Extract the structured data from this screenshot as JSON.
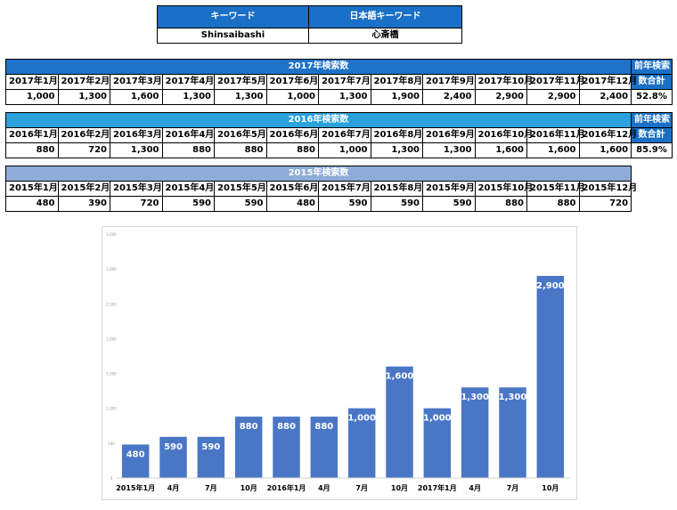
{
  "keyword_table": {
    "headers": [
      "キーワード",
      "日本語キーワード"
    ],
    "values": [
      "Shinsaibashi",
      "心斎橋"
    ]
  },
  "tables": [
    {
      "title": "2017年検索数",
      "months": [
        "2017年1月",
        "2017年2月",
        "2017年3月",
        "2017年4月",
        "2017年5月",
        "2017年6月",
        "2017年7月",
        "2017年8月",
        "2017年9月",
        "2017年10月",
        "2017年11月",
        "2017年12月"
      ],
      "values": [
        "1,000",
        "1,300",
        "1,600",
        "1,300",
        "1,300",
        "1,000",
        "1,300",
        "1,900",
        "2,400",
        "2,900",
        "2,900",
        "2,400"
      ],
      "side_header_1": "前年検索",
      "side_header_2": "数合計",
      "side_value": "52.8%"
    },
    {
      "title": "2016年検索数",
      "months": [
        "2016年1月",
        "2016年2月",
        "2016年3月",
        "2016年4月",
        "2016年5月",
        "2016年6月",
        "2016年7月",
        "2016年8月",
        "2016年9月",
        "2016年10月",
        "2016年11月",
        "2016年12月"
      ],
      "values": [
        "880",
        "720",
        "1,300",
        "880",
        "880",
        "880",
        "1,000",
        "1,300",
        "1,300",
        "1,600",
        "1,600",
        "1,600"
      ],
      "side_header_1": "前年検索",
      "side_header_2": "数合計",
      "side_value": "85.9%"
    },
    {
      "title": "2015年検索数",
      "months": [
        "2015年1月",
        "2015年2月",
        "2015年3月",
        "2015年4月",
        "2015年5月",
        "2015年6月",
        "2015年7月",
        "2015年8月",
        "2015年9月",
        "2015年10月",
        "2015年11月",
        "2015年12月"
      ],
      "values": [
        "480",
        "390",
        "720",
        "590",
        "590",
        "480",
        "590",
        "590",
        "590",
        "880",
        "880",
        "720"
      ]
    }
  ],
  "colors": {
    "bar": "#4a76c6",
    "header_2017": "#1f72c8",
    "header_2016": "#2aa2dc",
    "header_2015": "#8facd8"
  },
  "chart_data": {
    "type": "bar",
    "categories": [
      "2015年1月",
      "4月",
      "7月",
      "10月",
      "2016年1月",
      "4月",
      "7月",
      "10月",
      "2017年1月",
      "4月",
      "7月",
      "10月"
    ],
    "values": [
      480,
      590,
      590,
      880,
      880,
      880,
      1000,
      1600,
      1000,
      1300,
      1300,
      2900
    ],
    "data_labels": [
      "480",
      "590",
      "590",
      "880",
      "880",
      "880",
      "1,000",
      "1,600",
      "1,000",
      "1,300",
      "1,300",
      "2,900"
    ],
    "ylim": [
      0,
      3500
    ],
    "ytick_values": [
      0,
      500,
      1000,
      1500,
      2000,
      2500,
      3000,
      3500
    ],
    "grid": false
  }
}
